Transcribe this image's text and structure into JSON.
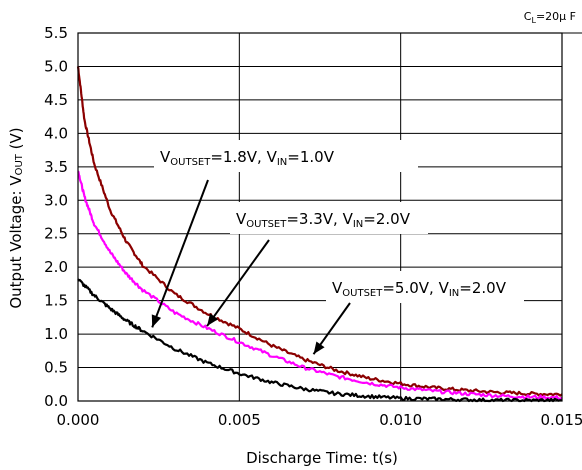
{
  "chart_data": {
    "type": "line",
    "title": "",
    "xlabel": "Discharge Time: t(s)",
    "ylabel": {
      "prefix": "Output Voltage: V",
      "sub": "OUT",
      "suffix": " (V)"
    },
    "xlim": [
      0,
      0.015
    ],
    "ylim": [
      0,
      5.5
    ],
    "x_ticks": [
      "0.000",
      "0.005",
      "0.010",
      "0.015"
    ],
    "y_ticks": [
      "0.0",
      "0.5",
      "1.0",
      "1.5",
      "2.0",
      "2.5",
      "3.0",
      "3.5",
      "4.0",
      "4.5",
      "5.0",
      "5.5"
    ],
    "grid": true,
    "legend": "none",
    "condition": {
      "prefix": "C",
      "sub": "L",
      "suffix": "=20µ F"
    },
    "series": [
      {
        "color": "#8b0000",
        "x": [
          0,
          0.0002,
          0.0005,
          0.001,
          0.0015,
          0.002,
          0.003,
          0.004,
          0.005,
          0.006,
          0.007,
          0.008,
          0.009,
          0.01,
          0.011,
          0.012,
          0.013,
          0.014,
          0.015
        ],
        "y": [
          5.0,
          4.2,
          3.55,
          2.85,
          2.38,
          2.03,
          1.6,
          1.31,
          1.08,
          0.83,
          0.62,
          0.46,
          0.34,
          0.26,
          0.2,
          0.16,
          0.13,
          0.11,
          0.1
        ]
      },
      {
        "color": "#ff00ff",
        "x": [
          0,
          0.0002,
          0.0005,
          0.001,
          0.0015,
          0.002,
          0.003,
          0.004,
          0.005,
          0.006,
          0.007,
          0.008,
          0.009,
          0.01,
          0.011,
          0.012,
          0.013,
          0.014,
          0.015
        ],
        "y": [
          3.45,
          3.05,
          2.65,
          2.22,
          1.9,
          1.66,
          1.32,
          1.09,
          0.88,
          0.68,
          0.5,
          0.37,
          0.27,
          0.2,
          0.15,
          0.11,
          0.08,
          0.06,
          0.05
        ]
      },
      {
        "color": "#000000",
        "x": [
          0,
          0.0005,
          0.001,
          0.0015,
          0.002,
          0.003,
          0.004,
          0.005,
          0.006,
          0.007,
          0.008,
          0.009,
          0.01,
          0.011,
          0.012,
          0.013,
          0.014,
          0.015
        ],
        "y": [
          1.82,
          1.58,
          1.38,
          1.2,
          1.05,
          0.78,
          0.57,
          0.41,
          0.28,
          0.18,
          0.11,
          0.07,
          0.04,
          0.03,
          0.02,
          0.01,
          0.01,
          0.01
        ]
      }
    ],
    "annotations": [
      {
        "text": [
          [
            "V",
            ""
          ],
          [
            "OUTSET",
            "sub"
          ],
          [
            "=1.8V, V",
            ""
          ],
          [
            "IN",
            "sub"
          ],
          [
            "=1.0V",
            ""
          ]
        ],
        "target": [
          0.0023,
          1.1
        ]
      },
      {
        "text": [
          [
            "V",
            ""
          ],
          [
            "OUTSET",
            "sub"
          ],
          [
            "=3.3V, V",
            ""
          ],
          [
            "IN",
            "sub"
          ],
          [
            "=2.0V",
            ""
          ]
        ],
        "target": [
          0.004,
          1.12
        ]
      },
      {
        "text": [
          [
            "V",
            ""
          ],
          [
            "OUTSET",
            "sub"
          ],
          [
            "=5.0V, V",
            ""
          ],
          [
            "IN",
            "sub"
          ],
          [
            "=2.0V",
            ""
          ]
        ],
        "target": [
          0.0073,
          0.7
        ]
      }
    ]
  }
}
